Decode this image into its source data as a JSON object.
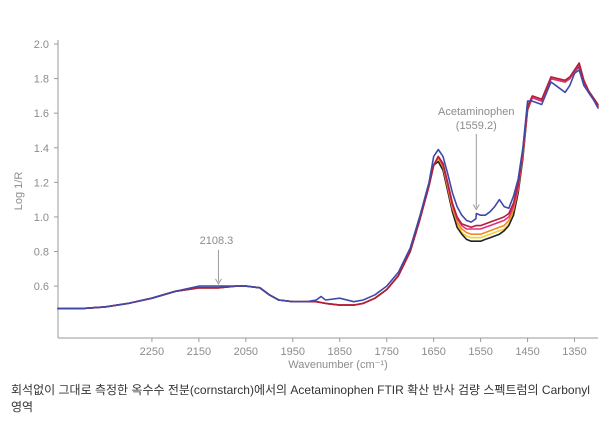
{
  "chart_data": {
    "type": "line",
    "title": "",
    "xlabel": "Wavenumber (cm⁻¹)",
    "ylabel": "Log 1/R",
    "xlim": [
      2450,
      1300
    ],
    "ylim": [
      0.3,
      2.0
    ],
    "x_reversed": true,
    "grid": false,
    "x_ticks": [
      "2250",
      "2150",
      "2050",
      "1950",
      "1850",
      "1750",
      "1650",
      "1550",
      "1450",
      "1350"
    ],
    "y_ticks": [
      "2.0",
      "1.8",
      "1.6",
      "1.4",
      "1.2",
      "1.0",
      "0.8",
      "0.6"
    ],
    "annotations": [
      {
        "text": "2108.3",
        "x": 2108.3,
        "y": 0.59
      },
      {
        "text": "Acetaminophen",
        "text2": "(1559.2)",
        "x": 1559.2,
        "y": 1.02
      }
    ],
    "series": [
      {
        "color": "#f2d22e",
        "x": [
          2450,
          2400,
          2350,
          2300,
          2250,
          2200,
          2150,
          2108,
          2070,
          2050,
          2020,
          2000,
          1980,
          1950,
          1920,
          1900,
          1880,
          1850,
          1820,
          1800,
          1775,
          1750,
          1725,
          1700,
          1680,
          1660,
          1650,
          1640,
          1630,
          1620,
          1610,
          1600,
          1590,
          1580,
          1570,
          1560,
          1550,
          1540,
          1530,
          1520,
          1510,
          1500,
          1490,
          1480,
          1470,
          1460,
          1450,
          1440,
          1420,
          1400,
          1385,
          1370,
          1360,
          1350,
          1340,
          1330,
          1320,
          1310,
          1300
        ],
        "y": [
          0.47,
          0.47,
          0.48,
          0.5,
          0.53,
          0.57,
          0.59,
          0.59,
          0.6,
          0.6,
          0.59,
          0.55,
          0.52,
          0.51,
          0.51,
          0.51,
          0.5,
          0.49,
          0.49,
          0.5,
          0.53,
          0.58,
          0.66,
          0.8,
          0.98,
          1.18,
          1.3,
          1.33,
          1.28,
          1.16,
          1.04,
          0.96,
          0.91,
          0.89,
          0.88,
          0.88,
          0.88,
          0.89,
          0.9,
          0.91,
          0.92,
          0.93,
          0.96,
          1.02,
          1.15,
          1.35,
          1.62,
          1.69,
          1.67,
          1.8,
          1.79,
          1.78,
          1.8,
          1.84,
          1.88,
          1.78,
          1.72,
          1.68,
          1.64
        ]
      },
      {
        "color": "#222222",
        "x": [
          2450,
          2400,
          2350,
          2300,
          2250,
          2200,
          2150,
          2108,
          2070,
          2050,
          2020,
          2000,
          1980,
          1950,
          1920,
          1900,
          1880,
          1850,
          1820,
          1800,
          1775,
          1750,
          1725,
          1700,
          1680,
          1660,
          1650,
          1640,
          1630,
          1620,
          1610,
          1600,
          1590,
          1580,
          1570,
          1560,
          1550,
          1540,
          1530,
          1520,
          1510,
          1500,
          1490,
          1480,
          1470,
          1460,
          1450,
          1440,
          1420,
          1400,
          1385,
          1370,
          1360,
          1350,
          1340,
          1330,
          1320,
          1310,
          1300
        ],
        "y": [
          0.47,
          0.47,
          0.48,
          0.5,
          0.53,
          0.57,
          0.59,
          0.59,
          0.6,
          0.6,
          0.59,
          0.55,
          0.52,
          0.51,
          0.51,
          0.51,
          0.5,
          0.49,
          0.49,
          0.5,
          0.53,
          0.58,
          0.66,
          0.8,
          0.98,
          1.18,
          1.3,
          1.32,
          1.27,
          1.15,
          1.03,
          0.94,
          0.9,
          0.87,
          0.86,
          0.86,
          0.86,
          0.87,
          0.88,
          0.89,
          0.9,
          0.92,
          0.95,
          1.01,
          1.14,
          1.34,
          1.62,
          1.69,
          1.67,
          1.8,
          1.79,
          1.78,
          1.8,
          1.84,
          1.87,
          1.78,
          1.72,
          1.68,
          1.64
        ]
      },
      {
        "color": "#f08a24",
        "x": [
          2450,
          2400,
          2350,
          2300,
          2250,
          2200,
          2150,
          2108,
          2070,
          2050,
          2020,
          2000,
          1980,
          1950,
          1920,
          1900,
          1880,
          1850,
          1820,
          1800,
          1775,
          1750,
          1725,
          1700,
          1680,
          1660,
          1650,
          1640,
          1630,
          1620,
          1610,
          1600,
          1590,
          1580,
          1570,
          1560,
          1550,
          1540,
          1530,
          1520,
          1510,
          1500,
          1490,
          1480,
          1470,
          1460,
          1450,
          1440,
          1420,
          1400,
          1385,
          1370,
          1360,
          1350,
          1340,
          1330,
          1320,
          1310,
          1300
        ],
        "y": [
          0.47,
          0.47,
          0.48,
          0.5,
          0.53,
          0.57,
          0.59,
          0.59,
          0.6,
          0.6,
          0.59,
          0.55,
          0.52,
          0.51,
          0.51,
          0.51,
          0.5,
          0.49,
          0.49,
          0.5,
          0.53,
          0.58,
          0.66,
          0.8,
          0.98,
          1.18,
          1.3,
          1.34,
          1.29,
          1.17,
          1.05,
          0.97,
          0.93,
          0.91,
          0.9,
          0.9,
          0.9,
          0.91,
          0.92,
          0.93,
          0.94,
          0.95,
          0.98,
          1.04,
          1.16,
          1.36,
          1.63,
          1.69,
          1.67,
          1.8,
          1.79,
          1.78,
          1.8,
          1.84,
          1.88,
          1.78,
          1.72,
          1.68,
          1.64
        ]
      },
      {
        "color": "#e0307a",
        "x": [
          2450,
          2400,
          2350,
          2300,
          2250,
          2200,
          2150,
          2108,
          2070,
          2050,
          2020,
          2000,
          1980,
          1950,
          1920,
          1900,
          1880,
          1850,
          1820,
          1800,
          1775,
          1750,
          1725,
          1700,
          1680,
          1660,
          1650,
          1640,
          1630,
          1620,
          1610,
          1600,
          1590,
          1580,
          1570,
          1560,
          1550,
          1540,
          1530,
          1520,
          1510,
          1500,
          1490,
          1480,
          1470,
          1460,
          1450,
          1440,
          1420,
          1400,
          1385,
          1370,
          1360,
          1350,
          1340,
          1330,
          1320,
          1310,
          1300
        ],
        "y": [
          0.47,
          0.47,
          0.48,
          0.5,
          0.53,
          0.57,
          0.59,
          0.59,
          0.6,
          0.6,
          0.59,
          0.55,
          0.52,
          0.51,
          0.51,
          0.51,
          0.5,
          0.49,
          0.49,
          0.5,
          0.53,
          0.58,
          0.66,
          0.8,
          0.98,
          1.18,
          1.3,
          1.35,
          1.3,
          1.19,
          1.07,
          0.99,
          0.95,
          0.93,
          0.93,
          0.93,
          0.93,
          0.94,
          0.95,
          0.96,
          0.97,
          0.98,
          1.0,
          1.06,
          1.17,
          1.37,
          1.63,
          1.69,
          1.67,
          1.8,
          1.79,
          1.78,
          1.8,
          1.84,
          1.88,
          1.78,
          1.72,
          1.68,
          1.64
        ]
      },
      {
        "color": "#b11f3a",
        "x": [
          2450,
          2400,
          2350,
          2300,
          2250,
          2200,
          2150,
          2108,
          2070,
          2050,
          2020,
          2000,
          1980,
          1950,
          1920,
          1900,
          1880,
          1850,
          1820,
          1800,
          1775,
          1750,
          1725,
          1700,
          1680,
          1660,
          1650,
          1640,
          1630,
          1620,
          1610,
          1600,
          1590,
          1580,
          1570,
          1560,
          1550,
          1540,
          1530,
          1520,
          1510,
          1500,
          1490,
          1480,
          1470,
          1460,
          1450,
          1440,
          1420,
          1400,
          1385,
          1370,
          1360,
          1350,
          1340,
          1330,
          1320,
          1310,
          1300
        ],
        "y": [
          0.47,
          0.47,
          0.48,
          0.5,
          0.53,
          0.57,
          0.59,
          0.59,
          0.6,
          0.6,
          0.59,
          0.55,
          0.52,
          0.51,
          0.51,
          0.51,
          0.5,
          0.49,
          0.49,
          0.5,
          0.53,
          0.58,
          0.66,
          0.8,
          0.98,
          1.18,
          1.3,
          1.35,
          1.31,
          1.2,
          1.08,
          1.0,
          0.96,
          0.95,
          0.94,
          0.95,
          0.95,
          0.96,
          0.97,
          0.98,
          0.99,
          1.0,
          1.02,
          1.08,
          1.19,
          1.39,
          1.64,
          1.7,
          1.68,
          1.81,
          1.8,
          1.79,
          1.81,
          1.85,
          1.89,
          1.79,
          1.73,
          1.69,
          1.65
        ]
      },
      {
        "color": "#3f4aa8",
        "x": [
          2450,
          2400,
          2350,
          2300,
          2250,
          2200,
          2150,
          2108,
          2070,
          2050,
          2020,
          2000,
          1980,
          1950,
          1920,
          1900,
          1890,
          1880,
          1850,
          1820,
          1800,
          1775,
          1750,
          1725,
          1700,
          1680,
          1660,
          1650,
          1645,
          1640,
          1630,
          1620,
          1610,
          1600,
          1590,
          1580,
          1570,
          1560,
          1559,
          1550,
          1540,
          1530,
          1520,
          1510,
          1500,
          1490,
          1480,
          1470,
          1460,
          1450,
          1440,
          1420,
          1400,
          1385,
          1370,
          1360,
          1350,
          1340,
          1330,
          1320,
          1310,
          1300
        ],
        "y": [
          0.47,
          0.47,
          0.48,
          0.5,
          0.53,
          0.57,
          0.6,
          0.6,
          0.6,
          0.6,
          0.59,
          0.55,
          0.52,
          0.51,
          0.51,
          0.52,
          0.54,
          0.52,
          0.53,
          0.51,
          0.52,
          0.55,
          0.6,
          0.68,
          0.82,
          1.0,
          1.2,
          1.35,
          1.37,
          1.39,
          1.35,
          1.25,
          1.14,
          1.06,
          1.01,
          0.98,
          0.97,
          0.99,
          1.02,
          1.01,
          1.01,
          1.03,
          1.06,
          1.1,
          1.06,
          1.05,
          1.12,
          1.22,
          1.4,
          1.67,
          1.67,
          1.65,
          1.78,
          1.75,
          1.72,
          1.76,
          1.83,
          1.85,
          1.76,
          1.72,
          1.68,
          1.63
        ]
      }
    ]
  },
  "caption": "회석없이 그대로 측정한 옥수수 전분(cornstarch)에서의 Acetaminophen FTIR 확산 반사 검량 스펙트럼의 Carbonyl 영역"
}
